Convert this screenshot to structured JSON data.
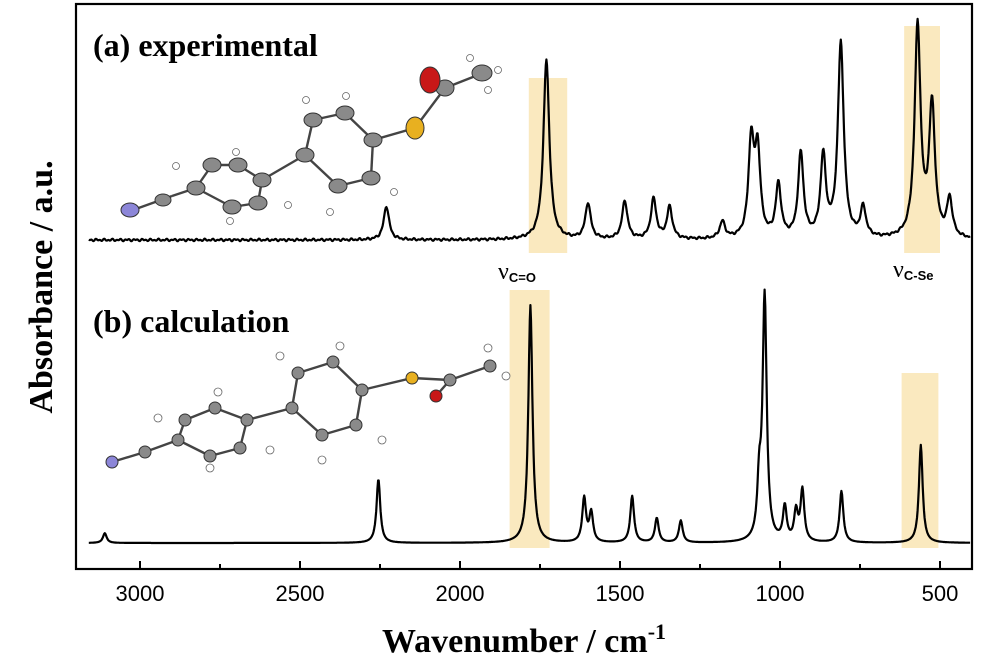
{
  "chart_data": {
    "type": "line",
    "xlabel": "Wavenumber / cm",
    "xlabel_superscript": "-1",
    "ylabel": "Absorbance / a.u.",
    "xlim": [
      3200,
      400
    ],
    "x_reversed": true,
    "xticks": [
      "3000",
      "2500",
      "2000",
      "1500",
      "1000",
      "500"
    ],
    "y_ticks_shown": false,
    "panels": [
      {
        "label": "(a) experimental",
        "peaks": [
          {
            "x": 2230,
            "y": 0.16
          },
          {
            "x": 1730,
            "y": 0.85
          },
          {
            "x": 1600,
            "y": 0.17
          },
          {
            "x": 1485,
            "y": 0.18
          },
          {
            "x": 1395,
            "y": 0.19
          },
          {
            "x": 1345,
            "y": 0.15
          },
          {
            "x": 1180,
            "y": 0.08
          },
          {
            "x": 1090,
            "y": 0.45
          },
          {
            "x": 1070,
            "y": 0.4
          },
          {
            "x": 1005,
            "y": 0.25
          },
          {
            "x": 935,
            "y": 0.4
          },
          {
            "x": 865,
            "y": 0.38
          },
          {
            "x": 810,
            "y": 0.92
          },
          {
            "x": 740,
            "y": 0.14
          },
          {
            "x": 570,
            "y": 1.0
          },
          {
            "x": 525,
            "y": 0.62
          },
          {
            "x": 470,
            "y": 0.18
          }
        ]
      },
      {
        "label": "(b) calculation",
        "peaks": [
          {
            "x": 3110,
            "y": 0.04
          },
          {
            "x": 2255,
            "y": 0.26
          },
          {
            "x": 1780,
            "y": 0.97
          },
          {
            "x": 1612,
            "y": 0.18
          },
          {
            "x": 1590,
            "y": 0.12
          },
          {
            "x": 1462,
            "y": 0.19
          },
          {
            "x": 1385,
            "y": 0.1
          },
          {
            "x": 1310,
            "y": 0.09
          },
          {
            "x": 1065,
            "y": 0.21
          },
          {
            "x": 1048,
            "y": 1.0
          },
          {
            "x": 985,
            "y": 0.14
          },
          {
            "x": 950,
            "y": 0.12
          },
          {
            "x": 930,
            "y": 0.21
          },
          {
            "x": 808,
            "y": 0.21
          },
          {
            "x": 560,
            "y": 0.4
          }
        ]
      }
    ],
    "highlight_bands": [
      {
        "panel": "a",
        "from": 1785,
        "to": 1665,
        "label": "ν",
        "label_sub": "C=O"
      },
      {
        "panel": "a",
        "from": 612,
        "to": 500,
        "label": "ν",
        "label_sub": "C-Se"
      },
      {
        "panel": "b",
        "from": 1845,
        "to": 1720
      },
      {
        "panel": "b",
        "from": 620,
        "to": 505
      }
    ],
    "band_color": "#f5d78a"
  }
}
